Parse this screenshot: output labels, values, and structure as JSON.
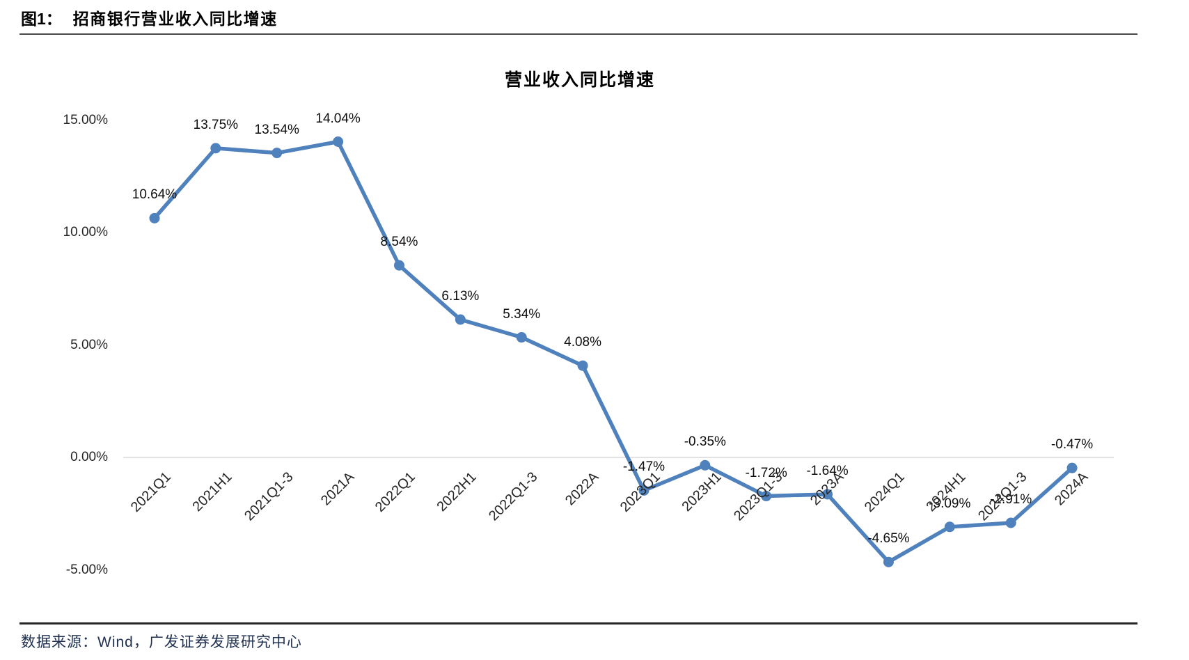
{
  "figure": {
    "caption_prefix": "图1：",
    "caption": "招商银行营业收入同比增速",
    "source": "数据来源：Wind，广发证券发展研究中心"
  },
  "chart_data": {
    "type": "line",
    "title": "营业收入同比增速",
    "categories": [
      "2021Q1",
      "2021H1",
      "2021Q1-3",
      "2021A",
      "2022Q1",
      "2022H1",
      "2022Q1-3",
      "2022A",
      "2023Q1",
      "2023H1",
      "2023Q1-3",
      "2023A",
      "2024Q1",
      "2024H1",
      "2024Q1-3",
      "2024A"
    ],
    "series": [
      {
        "name": "营业收入同比增速",
        "values": [
          10.64,
          13.75,
          13.54,
          14.04,
          8.54,
          6.13,
          5.34,
          4.08,
          -1.47,
          -0.35,
          -1.72,
          -1.64,
          -4.65,
          -3.09,
          -2.91,
          -0.47
        ]
      }
    ],
    "data_labels": [
      "10.64%",
      "13.75%",
      "13.54%",
      "14.04%",
      "8.54%",
      "6.13%",
      "5.34%",
      "4.08%",
      "-1.47%",
      "-0.35%",
      "-1.72%",
      "-1.64%",
      "-4.65%",
      "-3.09%",
      "-2.91%",
      "-0.47%"
    ],
    "y_ticks": [
      "15.00%",
      "10.00%",
      "5.00%",
      "0.00%",
      "-5.00%"
    ],
    "y_tick_values": [
      15,
      10,
      5,
      0,
      -5
    ],
    "ylim": [
      -5,
      15
    ],
    "line_color": "#4F81BD",
    "zero_gridline_color": "#D9D9D9",
    "grid": "zero-line-only",
    "legend_position": "none",
    "marker": "circle"
  }
}
